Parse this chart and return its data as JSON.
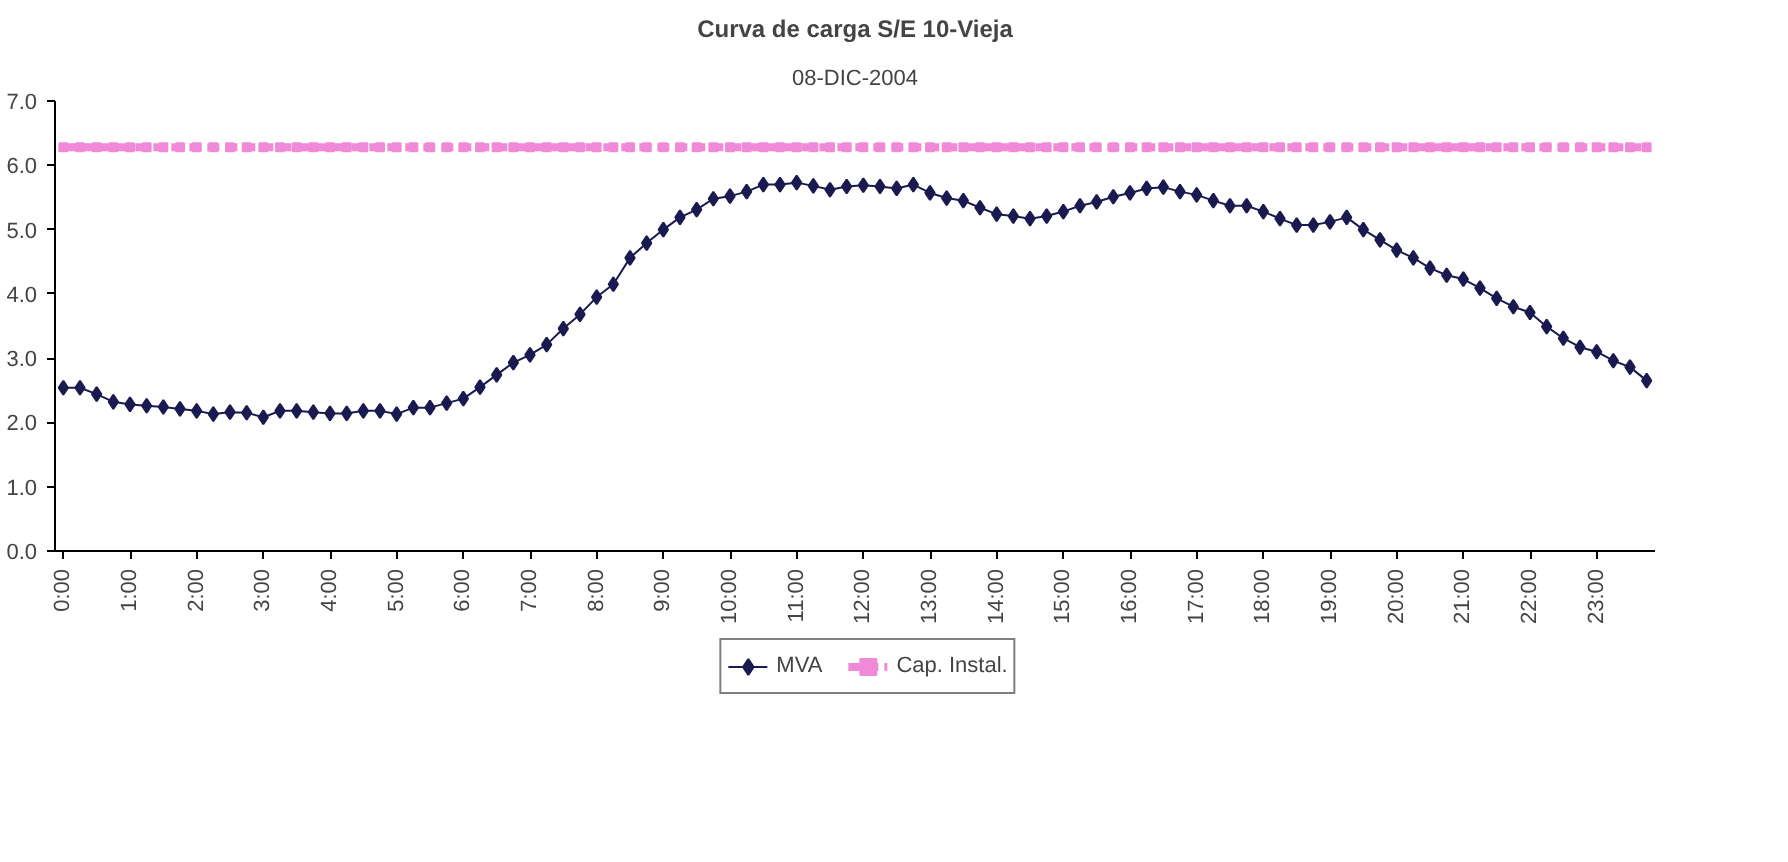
{
  "chart_data": {
    "type": "line",
    "title": "Curva de carga S/E 10-Vieja",
    "subtitle": "08-DIC-2004",
    "categories": [
      "0:00",
      null,
      null,
      null,
      "1:00",
      null,
      null,
      null,
      "2:00",
      null,
      null,
      null,
      "3:00",
      null,
      null,
      null,
      "4:00",
      null,
      null,
      null,
      "5:00",
      null,
      null,
      null,
      "6:00",
      null,
      null,
      null,
      "7:00",
      null,
      null,
      null,
      "8:00",
      null,
      null,
      null,
      "9:00",
      null,
      null,
      null,
      "10:00",
      null,
      null,
      null,
      "11:00",
      null,
      null,
      null,
      "12:00",
      null,
      null,
      null,
      "13:00",
      null,
      null,
      null,
      "14:00",
      null,
      null,
      null,
      "15:00",
      null,
      null,
      null,
      "16:00",
      null,
      null,
      null,
      "17:00",
      null,
      null,
      null,
      "18:00",
      null,
      null,
      null,
      "19:00",
      null,
      null,
      null,
      "20:00",
      null,
      null,
      null,
      "21:00",
      null,
      null,
      null,
      "22:00",
      null,
      null,
      null,
      "23:00",
      null,
      null,
      null
    ],
    "series": [
      {
        "name": "MVA",
        "color": "#1a1a50",
        "marker": "diamond",
        "line_style": "solid",
        "values": [
          2.54,
          2.54,
          2.44,
          2.32,
          2.28,
          2.26,
          2.24,
          2.21,
          2.18,
          2.13,
          2.16,
          2.15,
          2.08,
          2.18,
          2.18,
          2.16,
          2.14,
          2.14,
          2.18,
          2.18,
          2.13,
          2.23,
          2.23,
          2.3,
          2.37,
          2.55,
          2.74,
          2.93,
          3.05,
          3.21,
          3.46,
          3.68,
          3.95,
          4.15,
          4.56,
          4.79,
          5.0,
          5.19,
          5.31,
          5.48,
          5.52,
          5.59,
          5.7,
          5.7,
          5.73,
          5.68,
          5.62,
          5.67,
          5.69,
          5.67,
          5.64,
          5.7,
          5.57,
          5.49,
          5.45,
          5.34,
          5.24,
          5.21,
          5.17,
          5.21,
          5.28,
          5.37,
          5.43,
          5.51,
          5.57,
          5.64,
          5.66,
          5.59,
          5.54,
          5.45,
          5.37,
          5.37,
          5.28,
          5.17,
          5.07,
          5.07,
          5.12,
          5.19,
          5.0,
          4.84,
          4.68,
          4.56,
          4.4,
          4.29,
          4.23,
          4.09,
          3.93,
          3.8,
          3.71,
          3.49,
          3.31,
          3.17,
          3.1,
          2.96,
          2.86,
          2.65
        ]
      },
      {
        "name": "Cap. Instal.",
        "color": "#f08ad8",
        "marker": "square",
        "line_style": "dashed",
        "values": [
          6.28,
          6.28,
          6.28,
          6.28,
          6.28,
          6.28,
          6.28,
          6.28,
          6.28,
          6.28,
          6.28,
          6.28,
          6.28,
          6.28,
          6.28,
          6.28,
          6.28,
          6.28,
          6.28,
          6.28,
          6.28,
          6.28,
          6.28,
          6.28,
          6.28,
          6.28,
          6.28,
          6.28,
          6.28,
          6.28,
          6.28,
          6.28,
          6.28,
          6.28,
          6.28,
          6.28,
          6.28,
          6.28,
          6.28,
          6.28,
          6.28,
          6.28,
          6.28,
          6.28,
          6.28,
          6.28,
          6.28,
          6.28,
          6.28,
          6.28,
          6.28,
          6.28,
          6.28,
          6.28,
          6.28,
          6.28,
          6.28,
          6.28,
          6.28,
          6.28,
          6.28,
          6.28,
          6.28,
          6.28,
          6.28,
          6.28,
          6.28,
          6.28,
          6.28,
          6.28,
          6.28,
          6.28,
          6.28,
          6.28,
          6.28,
          6.28,
          6.28,
          6.28,
          6.28,
          6.28,
          6.28,
          6.28,
          6.28,
          6.28,
          6.28,
          6.28,
          6.28,
          6.28,
          6.28,
          6.28,
          6.28,
          6.28,
          6.28,
          6.28,
          6.28,
          6.28
        ]
      }
    ],
    "ylim": [
      0,
      7
    ],
    "yticks": [
      {
        "value": 0,
        "label": "0.0"
      },
      {
        "value": 1,
        "label": "1.0"
      },
      {
        "value": 2,
        "label": "2.0"
      },
      {
        "value": 3,
        "label": "3.0"
      },
      {
        "value": 4,
        "label": "4.0"
      },
      {
        "value": 5,
        "label": "5.0"
      },
      {
        "value": 6,
        "label": "6.0"
      },
      {
        "value": 7,
        "label": "7.0"
      }
    ],
    "grid": false,
    "legend": "bottom"
  }
}
